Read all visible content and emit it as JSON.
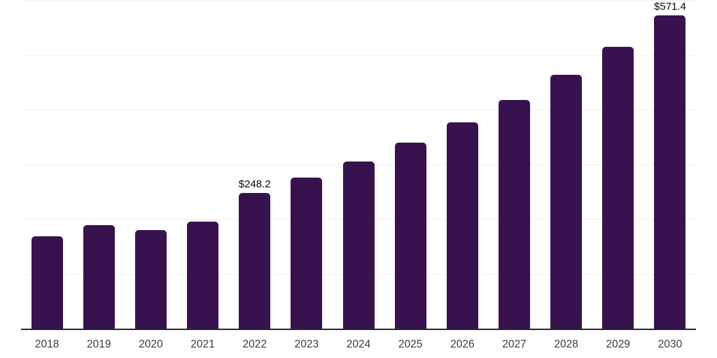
{
  "chart_data": {
    "type": "bar",
    "title": "",
    "xlabel": "",
    "ylabel": "",
    "categories": [
      "2018",
      "2019",
      "2020",
      "2021",
      "2022",
      "2023",
      "2024",
      "2025",
      "2026",
      "2027",
      "2028",
      "2029",
      "2030"
    ],
    "values": [
      168.7,
      189.3,
      180.3,
      195.7,
      248.2,
      275.5,
      305.7,
      339.3,
      376.5,
      417.9,
      463.8,
      514.7,
      571.4
    ],
    "value_labels": [
      "",
      "",
      "",
      "",
      "$248.2",
      "",
      "",
      "",
      "",
      "",
      "",
      "",
      "$571.4"
    ],
    "ylim": [
      0,
      600
    ],
    "gridline_interval": 100,
    "grid": true,
    "legend": "none",
    "colors": {
      "bar": "#38124f",
      "gridline": "#f1f1f1",
      "axis_line": "#272727",
      "value_label_text": "#0b0b0b",
      "tick_label_text": "#3c3c3c",
      "background": "#ffffff"
    }
  }
}
